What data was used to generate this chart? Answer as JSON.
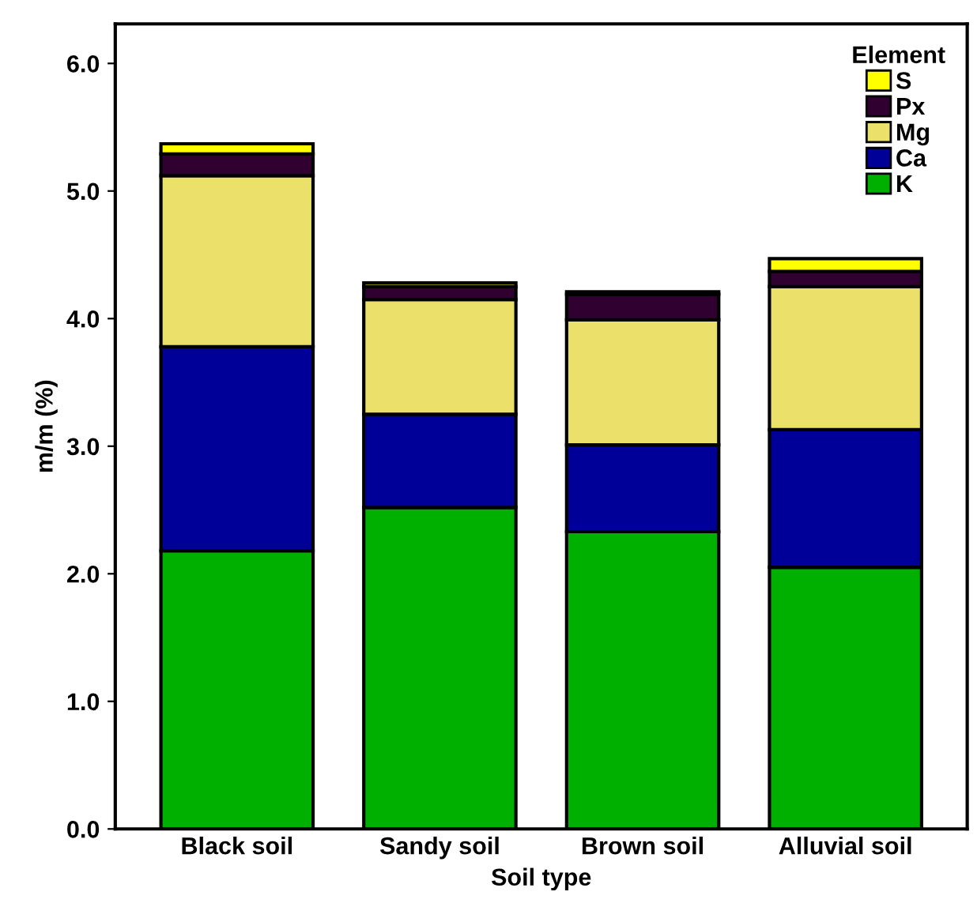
{
  "chart_data": {
    "type": "bar",
    "stacked": true,
    "xlabel": "Soil type",
    "ylabel": "m/m (%)",
    "legend_title": "Element",
    "legend": "top right",
    "grid": false,
    "categories": [
      "Black soil",
      "Sandy soil",
      "Brown soil",
      "Alluvial soil"
    ],
    "series": [
      {
        "name": "K",
        "color": "#00b000",
        "values": [
          2.18,
          2.52,
          2.33,
          2.05
        ]
      },
      {
        "name": "Ca",
        "color": "#000099",
        "values": [
          1.6,
          0.73,
          0.68,
          1.08
        ]
      },
      {
        "name": "Mg",
        "color": "#ebe06a",
        "values": [
          1.34,
          0.9,
          0.98,
          1.12
        ]
      },
      {
        "name": "Px",
        "color": "#300030",
        "values": [
          0.17,
          0.1,
          0.2,
          0.12
        ]
      },
      {
        "name": "S",
        "color": "#ffff00",
        "values": [
          0.08,
          0.03,
          0.02,
          0.1
        ]
      }
    ],
    "ylim": [
      0,
      6.31
    ],
    "yticks": [
      {
        "value": 0,
        "label": "0.0"
      },
      {
        "value": 1,
        "label": "1.0"
      },
      {
        "value": 2,
        "label": "2.0"
      },
      {
        "value": 3,
        "label": "3.0"
      },
      {
        "value": 4,
        "label": "4.0"
      },
      {
        "value": 5,
        "label": "5.0"
      },
      {
        "value": 6,
        "label": "6.0"
      }
    ]
  }
}
